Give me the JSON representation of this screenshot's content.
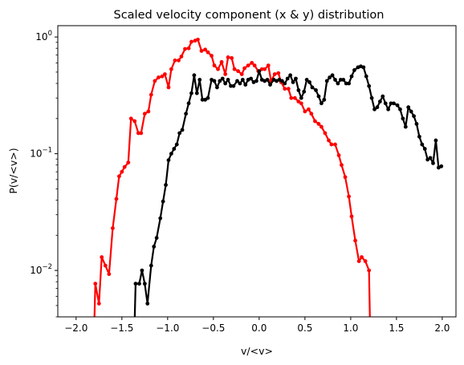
{
  "chart_data": {
    "type": "line",
    "title": "Scaled velocity component (x & y) distribution",
    "xlabel": "v/<v>",
    "ylabel": "P(v/<v>)",
    "xlim": [
      -2.2,
      2.15
    ],
    "ylim": [
      0.004,
      1.25
    ],
    "yscale": "log",
    "grid": false,
    "legend": "none",
    "xticks": [
      {
        "value": -2.0,
        "label": "−2.0"
      },
      {
        "value": -1.5,
        "label": "−1.5"
      },
      {
        "value": -1.0,
        "label": "−1.0"
      },
      {
        "value": -0.5,
        "label": "−0.5"
      },
      {
        "value": 0.0,
        "label": "0.0"
      },
      {
        "value": 0.5,
        "label": "0.5"
      },
      {
        "value": 1.0,
        "label": "1.0"
      },
      {
        "value": 1.5,
        "label": "1.5"
      },
      {
        "value": 2.0,
        "label": "2.0"
      }
    ],
    "yticks": [
      {
        "value": 0.01,
        "base": "10",
        "exp": "−2"
      },
      {
        "value": 0.1,
        "base": "10",
        "exp": "−1"
      },
      {
        "value": 1.0,
        "base": "10",
        "exp": "0"
      }
    ],
    "series": [
      {
        "color": "#ff0000",
        "points": [
          [
            -1.8,
            0.0038
          ],
          [
            -1.79,
            0.0077
          ],
          [
            -1.75,
            0.0052
          ],
          [
            -1.72,
            0.013
          ],
          [
            -1.68,
            0.011
          ],
          [
            -1.64,
            0.0093
          ],
          [
            -1.6,
            0.023
          ],
          [
            -1.56,
            0.041
          ],
          [
            -1.53,
            0.064
          ],
          [
            -1.5,
            0.07
          ],
          [
            -1.47,
            0.077
          ],
          [
            -1.43,
            0.084
          ],
          [
            -1.4,
            0.2
          ],
          [
            -1.36,
            0.19
          ],
          [
            -1.32,
            0.15
          ],
          [
            -1.29,
            0.15
          ],
          [
            -1.25,
            0.22
          ],
          [
            -1.21,
            0.23
          ],
          [
            -1.18,
            0.32
          ],
          [
            -1.14,
            0.42
          ],
          [
            -1.1,
            0.45
          ],
          [
            -1.06,
            0.46
          ],
          [
            -1.03,
            0.48
          ],
          [
            -0.99,
            0.37
          ],
          [
            -0.96,
            0.53
          ],
          [
            -0.92,
            0.63
          ],
          [
            -0.88,
            0.63
          ],
          [
            -0.85,
            0.68
          ],
          [
            -0.81,
            0.79
          ],
          [
            -0.77,
            0.8
          ],
          [
            -0.74,
            0.91
          ],
          [
            -0.7,
            0.93
          ],
          [
            -0.67,
            0.95
          ],
          [
            -0.63,
            0.76
          ],
          [
            -0.59,
            0.78
          ],
          [
            -0.56,
            0.74
          ],
          [
            -0.52,
            0.69
          ],
          [
            -0.49,
            0.57
          ],
          [
            -0.45,
            0.53
          ],
          [
            -0.41,
            0.61
          ],
          [
            -0.37,
            0.48
          ],
          [
            -0.34,
            0.67
          ],
          [
            -0.3,
            0.66
          ],
          [
            -0.27,
            0.53
          ],
          [
            -0.23,
            0.51
          ],
          [
            -0.19,
            0.48
          ],
          [
            -0.16,
            0.54
          ],
          [
            -0.12,
            0.57
          ],
          [
            -0.08,
            0.6
          ],
          [
            -0.05,
            0.57
          ],
          [
            -0.01,
            0.51
          ],
          [
            0.03,
            0.53
          ],
          [
            0.06,
            0.53
          ],
          [
            0.1,
            0.57
          ],
          [
            0.13,
            0.42
          ],
          [
            0.17,
            0.48
          ],
          [
            0.21,
            0.49
          ],
          [
            0.24,
            0.41
          ],
          [
            0.28,
            0.36
          ],
          [
            0.32,
            0.36
          ],
          [
            0.35,
            0.3
          ],
          [
            0.39,
            0.3
          ],
          [
            0.43,
            0.28
          ],
          [
            0.46,
            0.27
          ],
          [
            0.5,
            0.23
          ],
          [
            0.54,
            0.24
          ],
          [
            0.57,
            0.22
          ],
          [
            0.61,
            0.19
          ],
          [
            0.65,
            0.18
          ],
          [
            0.68,
            0.17
          ],
          [
            0.72,
            0.15
          ],
          [
            0.76,
            0.13
          ],
          [
            0.79,
            0.12
          ],
          [
            0.83,
            0.12
          ],
          [
            0.87,
            0.097
          ],
          [
            0.9,
            0.08
          ],
          [
            0.94,
            0.063
          ],
          [
            0.98,
            0.043
          ],
          [
            1.01,
            0.029
          ],
          [
            1.05,
            0.018
          ],
          [
            1.09,
            0.012
          ],
          [
            1.12,
            0.013
          ],
          [
            1.16,
            0.012
          ],
          [
            1.2,
            0.01
          ],
          [
            1.21,
            0.0038
          ]
        ]
      },
      {
        "color": "#000000",
        "points": [
          [
            -1.36,
            0.0038
          ],
          [
            -1.35,
            0.0077
          ],
          [
            -1.31,
            0.0077
          ],
          [
            -1.28,
            0.01
          ],
          [
            -1.25,
            0.0077
          ],
          [
            -1.22,
            0.0052
          ],
          [
            -1.18,
            0.011
          ],
          [
            -1.15,
            0.016
          ],
          [
            -1.12,
            0.019
          ],
          [
            -1.08,
            0.028
          ],
          [
            -1.05,
            0.039
          ],
          [
            -1.02,
            0.054
          ],
          [
            -0.99,
            0.088
          ],
          [
            -0.96,
            0.1
          ],
          [
            -0.93,
            0.11
          ],
          [
            -0.9,
            0.12
          ],
          [
            -0.87,
            0.15
          ],
          [
            -0.84,
            0.16
          ],
          [
            -0.8,
            0.22
          ],
          [
            -0.77,
            0.27
          ],
          [
            -0.74,
            0.33
          ],
          [
            -0.71,
            0.47
          ],
          [
            -0.68,
            0.33
          ],
          [
            -0.65,
            0.43
          ],
          [
            -0.62,
            0.29
          ],
          [
            -0.59,
            0.29
          ],
          [
            -0.56,
            0.3
          ],
          [
            -0.52,
            0.43
          ],
          [
            -0.49,
            0.42
          ],
          [
            -0.46,
            0.37
          ],
          [
            -0.43,
            0.42
          ],
          [
            -0.4,
            0.44
          ],
          [
            -0.37,
            0.4
          ],
          [
            -0.34,
            0.43
          ],
          [
            -0.31,
            0.38
          ],
          [
            -0.28,
            0.38
          ],
          [
            -0.24,
            0.42
          ],
          [
            -0.21,
            0.4
          ],
          [
            -0.18,
            0.43
          ],
          [
            -0.15,
            0.39
          ],
          [
            -0.12,
            0.43
          ],
          [
            -0.09,
            0.44
          ],
          [
            -0.06,
            0.41
          ],
          [
            -0.03,
            0.42
          ],
          [
            0.0,
            0.51
          ],
          [
            0.03,
            0.43
          ],
          [
            0.06,
            0.42
          ],
          [
            0.09,
            0.43
          ],
          [
            0.12,
            0.39
          ],
          [
            0.16,
            0.43
          ],
          [
            0.19,
            0.42
          ],
          [
            0.22,
            0.43
          ],
          [
            0.25,
            0.42
          ],
          [
            0.28,
            0.4
          ],
          [
            0.31,
            0.44
          ],
          [
            0.34,
            0.47
          ],
          [
            0.37,
            0.41
          ],
          [
            0.4,
            0.44
          ],
          [
            0.43,
            0.35
          ],
          [
            0.46,
            0.3
          ],
          [
            0.49,
            0.34
          ],
          [
            0.52,
            0.43
          ],
          [
            0.55,
            0.41
          ],
          [
            0.58,
            0.37
          ],
          [
            0.62,
            0.35
          ],
          [
            0.65,
            0.31
          ],
          [
            0.68,
            0.27
          ],
          [
            0.71,
            0.29
          ],
          [
            0.74,
            0.42
          ],
          [
            0.77,
            0.45
          ],
          [
            0.8,
            0.47
          ],
          [
            0.83,
            0.43
          ],
          [
            0.86,
            0.4
          ],
          [
            0.89,
            0.43
          ],
          [
            0.92,
            0.43
          ],
          [
            0.95,
            0.4
          ],
          [
            0.98,
            0.4
          ],
          [
            1.01,
            0.46
          ],
          [
            1.04,
            0.52
          ],
          [
            1.08,
            0.55
          ],
          [
            1.11,
            0.56
          ],
          [
            1.14,
            0.55
          ],
          [
            1.17,
            0.46
          ],
          [
            1.2,
            0.38
          ],
          [
            1.23,
            0.3
          ],
          [
            1.26,
            0.24
          ],
          [
            1.29,
            0.25
          ],
          [
            1.32,
            0.28
          ],
          [
            1.35,
            0.31
          ],
          [
            1.38,
            0.27
          ],
          [
            1.41,
            0.24
          ],
          [
            1.44,
            0.27
          ],
          [
            1.47,
            0.27
          ],
          [
            1.51,
            0.26
          ],
          [
            1.54,
            0.24
          ],
          [
            1.57,
            0.2
          ],
          [
            1.6,
            0.17
          ],
          [
            1.63,
            0.25
          ],
          [
            1.66,
            0.23
          ],
          [
            1.69,
            0.21
          ],
          [
            1.72,
            0.18
          ],
          [
            1.75,
            0.14
          ],
          [
            1.78,
            0.12
          ],
          [
            1.81,
            0.11
          ],
          [
            1.84,
            0.089
          ],
          [
            1.87,
            0.092
          ],
          [
            1.9,
            0.083
          ],
          [
            1.93,
            0.13
          ],
          [
            1.96,
            0.076
          ],
          [
            1.99,
            0.078
          ]
        ]
      }
    ]
  }
}
